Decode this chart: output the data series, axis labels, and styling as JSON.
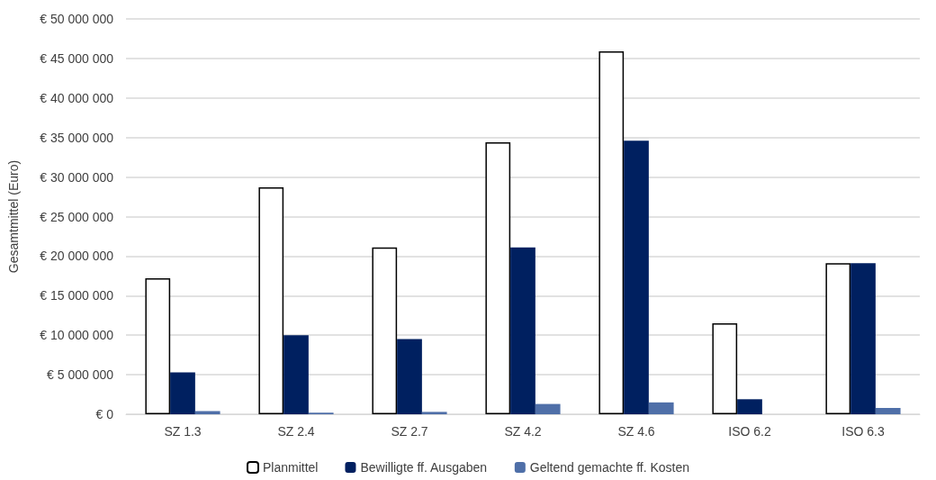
{
  "chart_data": {
    "type": "bar",
    "ylabel": "Gesamtmittel (Euro)",
    "categories": [
      "SZ 1.3",
      "SZ 2.4",
      "SZ 2.7",
      "SZ 4.2",
      "SZ 4.6",
      "ISO 6.2",
      "ISO 6.3"
    ],
    "series": [
      {
        "name": "Planmittel",
        "color": "#ffffff",
        "values": [
          17200000,
          28700000,
          21100000,
          34400000,
          45900000,
          11500000,
          19100000
        ]
      },
      {
        "name": "Bewilligte ff. Ausgaben",
        "color": "#002060",
        "values": [
          5300000,
          10000000,
          9500000,
          21100000,
          34600000,
          1900000,
          19100000
        ]
      },
      {
        "name": "Geltend gemachte ff. Kosten",
        "color": "#4f6fa8",
        "values": [
          400000,
          200000,
          300000,
          1300000,
          1500000,
          0,
          800000
        ]
      }
    ],
    "ylim": [
      0,
      50000000
    ],
    "yticks": [
      {
        "value": 0,
        "label": "€ 0"
      },
      {
        "value": 5000000,
        "label": "€ 5 000 000"
      },
      {
        "value": 10000000,
        "label": "€ 10 000 000"
      },
      {
        "value": 15000000,
        "label": "€ 15 000 000"
      },
      {
        "value": 20000000,
        "label": "€ 20 000 000"
      },
      {
        "value": 25000000,
        "label": "€ 25 000 000"
      },
      {
        "value": 30000000,
        "label": "€ 30 000 000"
      },
      {
        "value": 35000000,
        "label": "€ 35 000 000"
      },
      {
        "value": 40000000,
        "label": "€ 40 000 000"
      },
      {
        "value": 45000000,
        "label": "€ 45 000 000"
      },
      {
        "value": 50000000,
        "label": "€ 50 000 000"
      }
    ],
    "grid": "y",
    "legend": "bottom"
  }
}
